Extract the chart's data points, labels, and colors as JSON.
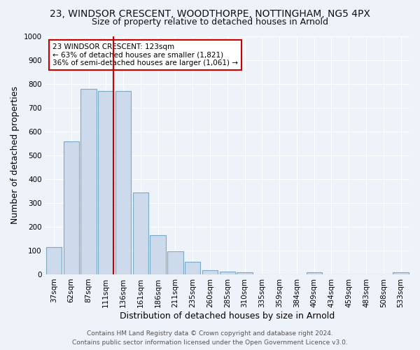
{
  "title": "23, WINDSOR CRESCENT, WOODTHORPE, NOTTINGHAM, NG5 4PX",
  "subtitle": "Size of property relative to detached houses in Arnold",
  "xlabel": "Distribution of detached houses by size in Arnold",
  "ylabel": "Number of detached properties",
  "categories": [
    "37sqm",
    "62sqm",
    "87sqm",
    "111sqm",
    "136sqm",
    "161sqm",
    "186sqm",
    "211sqm",
    "235sqm",
    "260sqm",
    "285sqm",
    "310sqm",
    "335sqm",
    "359sqm",
    "384sqm",
    "409sqm",
    "434sqm",
    "459sqm",
    "483sqm",
    "508sqm",
    "533sqm"
  ],
  "values": [
    113,
    557,
    778,
    770,
    770,
    345,
    163,
    97,
    53,
    18,
    13,
    8,
    0,
    0,
    0,
    10,
    0,
    0,
    0,
    0,
    10
  ],
  "bar_color": "#ccdaeb",
  "bar_edge_color": "#7aaac8",
  "vline_color": "#cc0000",
  "vline_pos": 3.425,
  "annotation_text": "23 WINDSOR CRESCENT: 123sqm\n← 63% of detached houses are smaller (1,821)\n36% of semi-detached houses are larger (1,061) →",
  "annotation_box_facecolor": "#ffffff",
  "annotation_box_edgecolor": "#cc0000",
  "ylim": [
    0,
    1000
  ],
  "yticks": [
    0,
    100,
    200,
    300,
    400,
    500,
    600,
    700,
    800,
    900,
    1000
  ],
  "footer_line1": "Contains HM Land Registry data © Crown copyright and database right 2024.",
  "footer_line2": "Contains public sector information licensed under the Open Government Licence v3.0.",
  "bg_color": "#eef2f9",
  "grid_color": "#ffffff",
  "title_fontsize": 10,
  "subtitle_fontsize": 9,
  "axis_label_fontsize": 9,
  "tick_fontsize": 7.5,
  "annotation_fontsize": 7.5,
  "footer_fontsize": 6.5
}
